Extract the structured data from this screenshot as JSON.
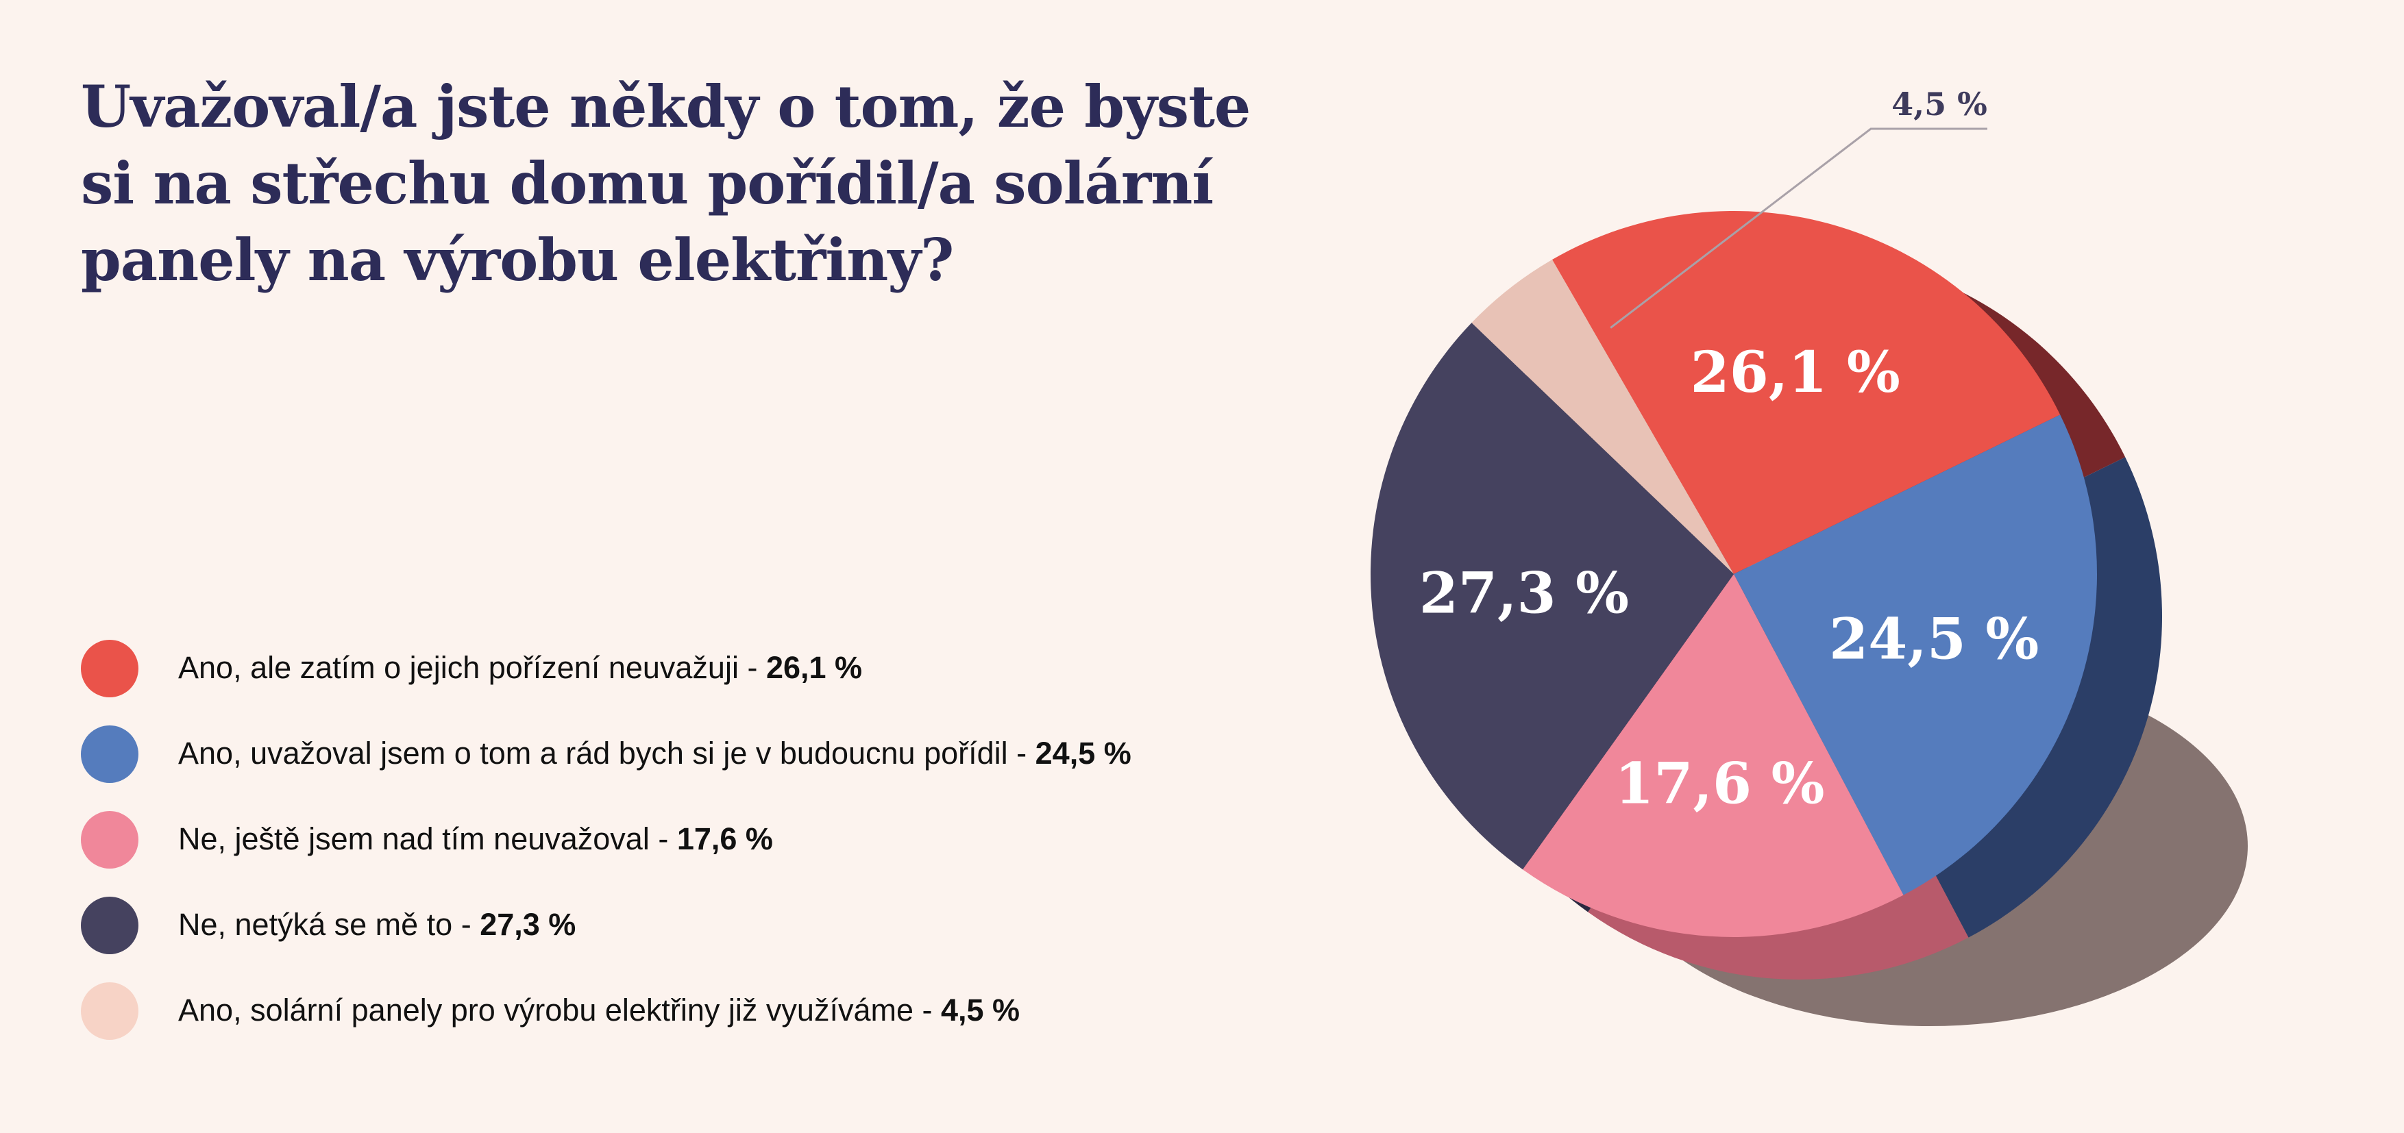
{
  "title_lines": [
    "Uvažoval/a jste někdy o tom, že byste",
    "si na střechu domu pořídil/a solární",
    "panely na výrobu elektřiny?"
  ],
  "chart_data": {
    "type": "pie",
    "title": "Uvažoval/a jste někdy o tom, že byste si na střechu domu pořídil/a solární panely na výrobu elektřiny?",
    "legend_position": "left",
    "slices": [
      {
        "legend": "Ano, ale zatím o jejich pořízení neuvažuji",
        "legend_value": "26,1 %",
        "value": 26.1,
        "label": "26,1 %",
        "color": "#ea534a",
        "side_color": "#77272a"
      },
      {
        "legend": "Ano, uvažoval jsem o tom a rád bych si je v budoucnu pořídil",
        "legend_value": "24,5 %",
        "value": 24.5,
        "label": "24,5 %",
        "color": "#557cbd",
        "side_color": "#2b3e67"
      },
      {
        "legend": "Ne, ještě jsem nad tím neuvažoval",
        "legend_value": "17,6 %",
        "value": 17.6,
        "label": "17,6 %",
        "color": "#f0879a",
        "side_color": "#b85a6b"
      },
      {
        "legend": "Ne, netýká se mě to",
        "legend_value": "27,3 %",
        "value": 27.3,
        "label": "27,3 %",
        "color": "#45425f",
        "side_color": "#2a2840"
      },
      {
        "legend": "Ano, solární panely pro výrobu elektřiny již využíváme",
        "legend_value": "4,5 %",
        "value": 4.5,
        "label": "4,5 %",
        "color": "#e8c2b6",
        "side_color": "#c9a296",
        "legend_color": "#f7d3c6"
      }
    ],
    "shadow_color": "#857370"
  }
}
